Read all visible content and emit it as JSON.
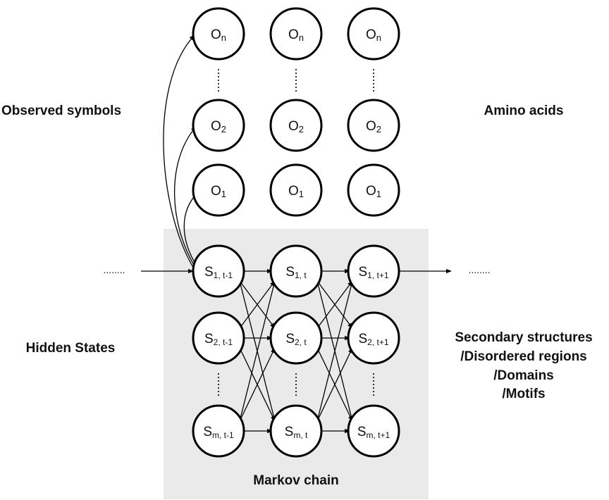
{
  "labels": {
    "observed": "Observed symbols",
    "amino": "Amino acids",
    "hidden": "Hidden States",
    "secondary": [
      "Secondary structures",
      "/Disordered regions",
      "/Domains",
      "/Motifs"
    ],
    "markov": "Markov chain",
    "ellipsis": "........"
  },
  "observed_rows": [
    {
      "letter": "O",
      "sub": "n"
    },
    {
      "letter": "O",
      "sub": "2"
    },
    {
      "letter": "O",
      "sub": "1"
    }
  ],
  "state_rows": [
    {
      "letter": "S",
      "sub": "1"
    },
    {
      "letter": "S",
      "sub": "2"
    },
    {
      "letter": "S",
      "sub": "m"
    }
  ],
  "time_steps": [
    "t-1",
    "t",
    "t+1"
  ],
  "colors": {
    "markov_bg": "#eaeaea",
    "stroke": "#000000"
  }
}
